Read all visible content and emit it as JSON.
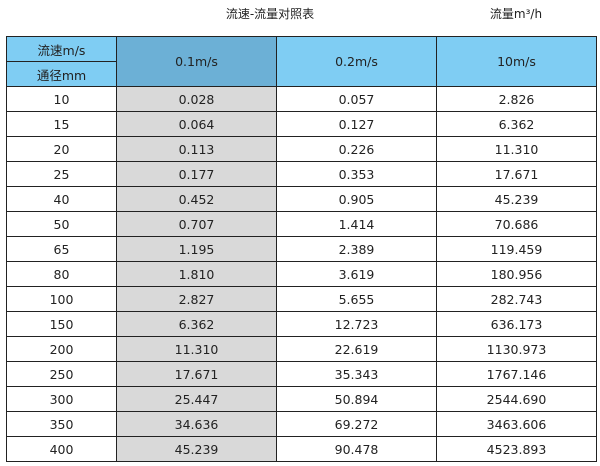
{
  "title": "流速-流量对照表",
  "unit_label": "流量m³/h",
  "header": {
    "velocity_label": "流速m/s",
    "diameter_label": "通径mm",
    "columns": [
      "0.1m/s",
      "0.2m/s",
      "10m/s"
    ]
  },
  "colors": {
    "header": "#7fcdf3",
    "header_selected": "#6cb0d6",
    "highlight_column": "#d9d9d9"
  },
  "rows": [
    [
      "10",
      "0.028",
      "0.057",
      "2.826"
    ],
    [
      "15",
      "0.064",
      "0.127",
      "6.362"
    ],
    [
      "20",
      "0.113",
      "0.226",
      "11.310"
    ],
    [
      "25",
      "0.177",
      "0.353",
      "17.671"
    ],
    [
      "40",
      "0.452",
      "0.905",
      "45.239"
    ],
    [
      "50",
      "0.707",
      "1.414",
      "70.686"
    ],
    [
      "65",
      "1.195",
      "2.389",
      "119.459"
    ],
    [
      "80",
      "1.810",
      "3.619",
      "180.956"
    ],
    [
      "100",
      "2.827",
      "5.655",
      "282.743"
    ],
    [
      "150",
      "6.362",
      "12.723",
      "636.173"
    ],
    [
      "200",
      "11.310",
      "22.619",
      "1130.973"
    ],
    [
      "250",
      "17.671",
      "35.343",
      "1767.146"
    ],
    [
      "300",
      "25.447",
      "50.894",
      "2544.690"
    ],
    [
      "350",
      "34.636",
      "69.272",
      "3463.606"
    ],
    [
      "400",
      "45.239",
      "90.478",
      "4523.893"
    ]
  ]
}
